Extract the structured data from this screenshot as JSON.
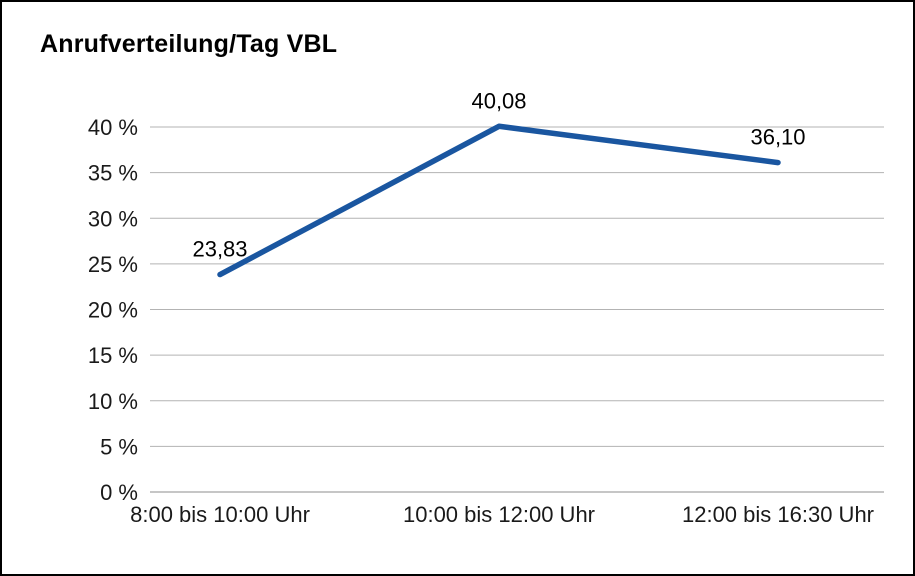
{
  "chart_data": {
    "type": "line",
    "title": "Anrufverteilung/Tag VBL",
    "categories": [
      "8:00 bis 10:00 Uhr",
      "10:00 bis 12:00 Uhr",
      "12:00 bis 16:30 Uhr"
    ],
    "series": [
      {
        "name": "Anrufverteilung/Tag VBL",
        "values": [
          23.83,
          40.08,
          36.1
        ]
      }
    ],
    "data_labels": [
      "23,83",
      "40,08",
      "36,10"
    ],
    "xlabel": "",
    "ylabel": "",
    "ylim": [
      0,
      40
    ],
    "ytick_step": 5,
    "ytick_labels": [
      "0 %",
      "5 %",
      "10 %",
      "15 %",
      "20 %",
      "25 %",
      "30 %",
      "35 %",
      "40 %"
    ],
    "grid": "horizontal",
    "legend": "none",
    "colors": {
      "line": "#1A56A0",
      "gridline": "#b3b3b3",
      "axis": "#8c8c8c",
      "text": "#1a1a1a"
    }
  }
}
